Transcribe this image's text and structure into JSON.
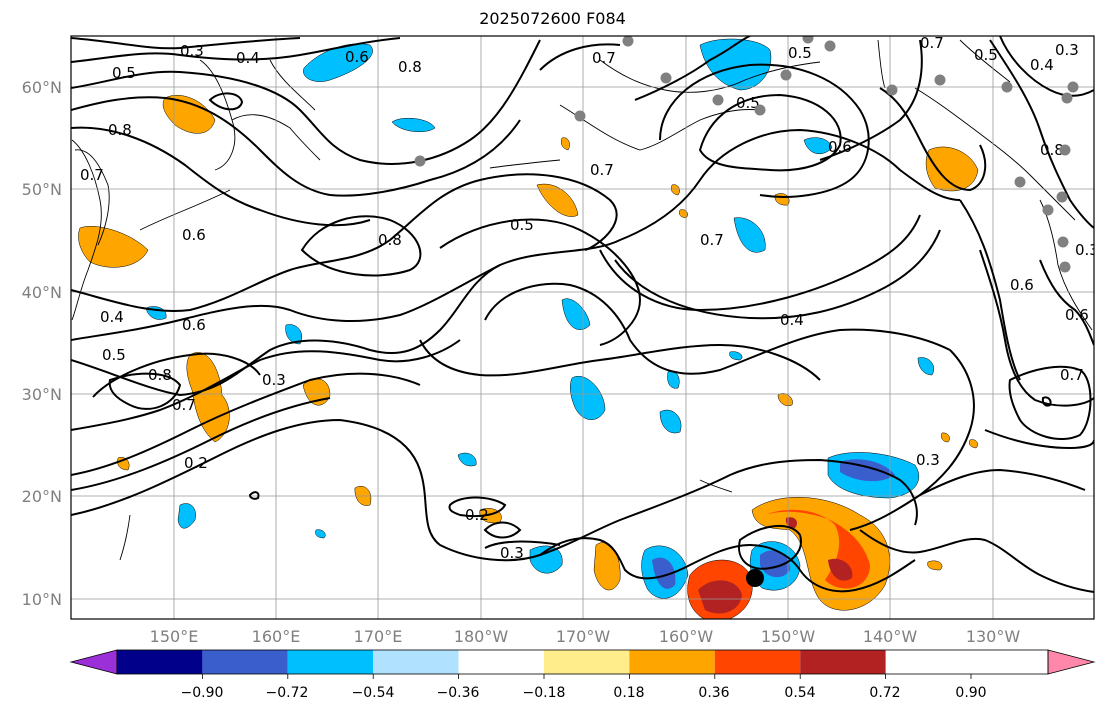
{
  "title": "2025072600 F084",
  "map": {
    "lon_ticks": [
      "150°E",
      "160°E",
      "170°E",
      "180°W",
      "170°W",
      "160°W",
      "150°W",
      "140°W",
      "130°W"
    ],
    "lat_ticks": [
      "60°N",
      "50°N",
      "40°N",
      "30°N",
      "20°N",
      "10°N"
    ],
    "grid": true,
    "contour_labels": [
      "0.3",
      "0.4",
      "0.5",
      "0.6",
      "0.8",
      "0.7",
      "0.8",
      "0.6",
      "0.5",
      "0.8",
      "0.7",
      "0.5",
      "0.7",
      "0.6",
      "0.4",
      "0.7",
      "0.5",
      "0.5",
      "0.4",
      "0.3",
      "0.7",
      "0.6",
      "0.4",
      "0.5",
      "0.6",
      "0.8",
      "0.7",
      "0.3",
      "0.2",
      "0.3",
      "0.2",
      "0.3",
      "0.8",
      "0.7",
      "0.6",
      "0.3"
    ],
    "marker_colors": {
      "station": "#808080",
      "center": "#000000"
    }
  },
  "colorbar": {
    "labels": [
      "−0.90",
      "−0.72",
      "−0.54",
      "−0.36",
      "−0.18",
      "0.18",
      "0.36",
      "0.54",
      "0.72",
      "0.90"
    ],
    "colors": [
      "#9b30d9",
      "#00008b",
      "#3a5fcd",
      "#00bfff",
      "#b0e2ff",
      "#ffffff",
      "#ffec8b",
      "#ffa500",
      "#ff4500",
      "#b22222",
      "#ff88aa"
    ]
  }
}
